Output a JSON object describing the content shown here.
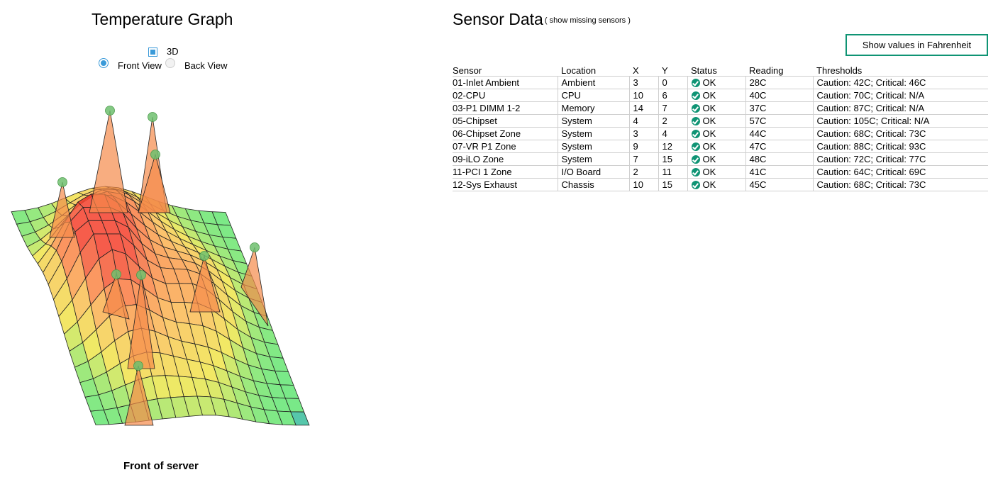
{
  "graph": {
    "title": "Temperature Graph",
    "mode_3d_label": "3D",
    "mode_3d_checked": true,
    "view_front_label": "Front View",
    "view_back_label": "Back View",
    "selected_view": "Front View",
    "bottom_caption": "Front of server"
  },
  "sensor_panel": {
    "title": "Sensor Data",
    "show_missing_link": "( show missing sensors )",
    "fahrenheit_button": "Show values in Fahrenheit",
    "columns": [
      "Sensor",
      "Location",
      "X",
      "Y",
      "Status",
      "Reading",
      "Thresholds"
    ],
    "rows": [
      {
        "sensor": "01-Inlet Ambient",
        "location": "Ambient",
        "x": "3",
        "y": "0",
        "status": "OK",
        "reading": "28C",
        "thresholds": "Caution: 42C; Critical: 46C"
      },
      {
        "sensor": "02-CPU",
        "location": "CPU",
        "x": "10",
        "y": "6",
        "status": "OK",
        "reading": "40C",
        "thresholds": "Caution: 70C; Critical: N/A"
      },
      {
        "sensor": "03-P1 DIMM 1-2",
        "location": "Memory",
        "x": "14",
        "y": "7",
        "status": "OK",
        "reading": "37C",
        "thresholds": "Caution: 87C; Critical: N/A"
      },
      {
        "sensor": "05-Chipset",
        "location": "System",
        "x": "4",
        "y": "2",
        "status": "OK",
        "reading": "57C",
        "thresholds": "Caution: 105C; Critical: N/A"
      },
      {
        "sensor": "06-Chipset Zone",
        "location": "System",
        "x": "3",
        "y": "4",
        "status": "OK",
        "reading": "44C",
        "thresholds": "Caution: 68C; Critical: 73C"
      },
      {
        "sensor": "07-VR P1 Zone",
        "location": "System",
        "x": "9",
        "y": "12",
        "status": "OK",
        "reading": "47C",
        "thresholds": "Caution: 88C; Critical: 93C"
      },
      {
        "sensor": "09-iLO Zone",
        "location": "System",
        "x": "7",
        "y": "15",
        "status": "OK",
        "reading": "48C",
        "thresholds": "Caution: 72C; Critical: 77C"
      },
      {
        "sensor": "11-PCI 1 Zone",
        "location": "I/O Board",
        "x": "2",
        "y": "11",
        "status": "OK",
        "reading": "41C",
        "thresholds": "Caution: 64C; Critical: 69C"
      },
      {
        "sensor": "12-Sys Exhaust",
        "location": "Chassis",
        "x": "10",
        "y": "15",
        "status": "OK",
        "reading": "45C",
        "thresholds": "Caution: 68C; Critical: 73C"
      }
    ]
  },
  "colors": {
    "accent_blue": "#3a9ad9",
    "ok_green": "#0f9474",
    "sensor_marker": "#6fbf6f",
    "grid_line": "#cfcfcf"
  },
  "icons": {
    "status_ok": "check-circle-icon",
    "sensor_marker": "sensor-dot-icon"
  }
}
